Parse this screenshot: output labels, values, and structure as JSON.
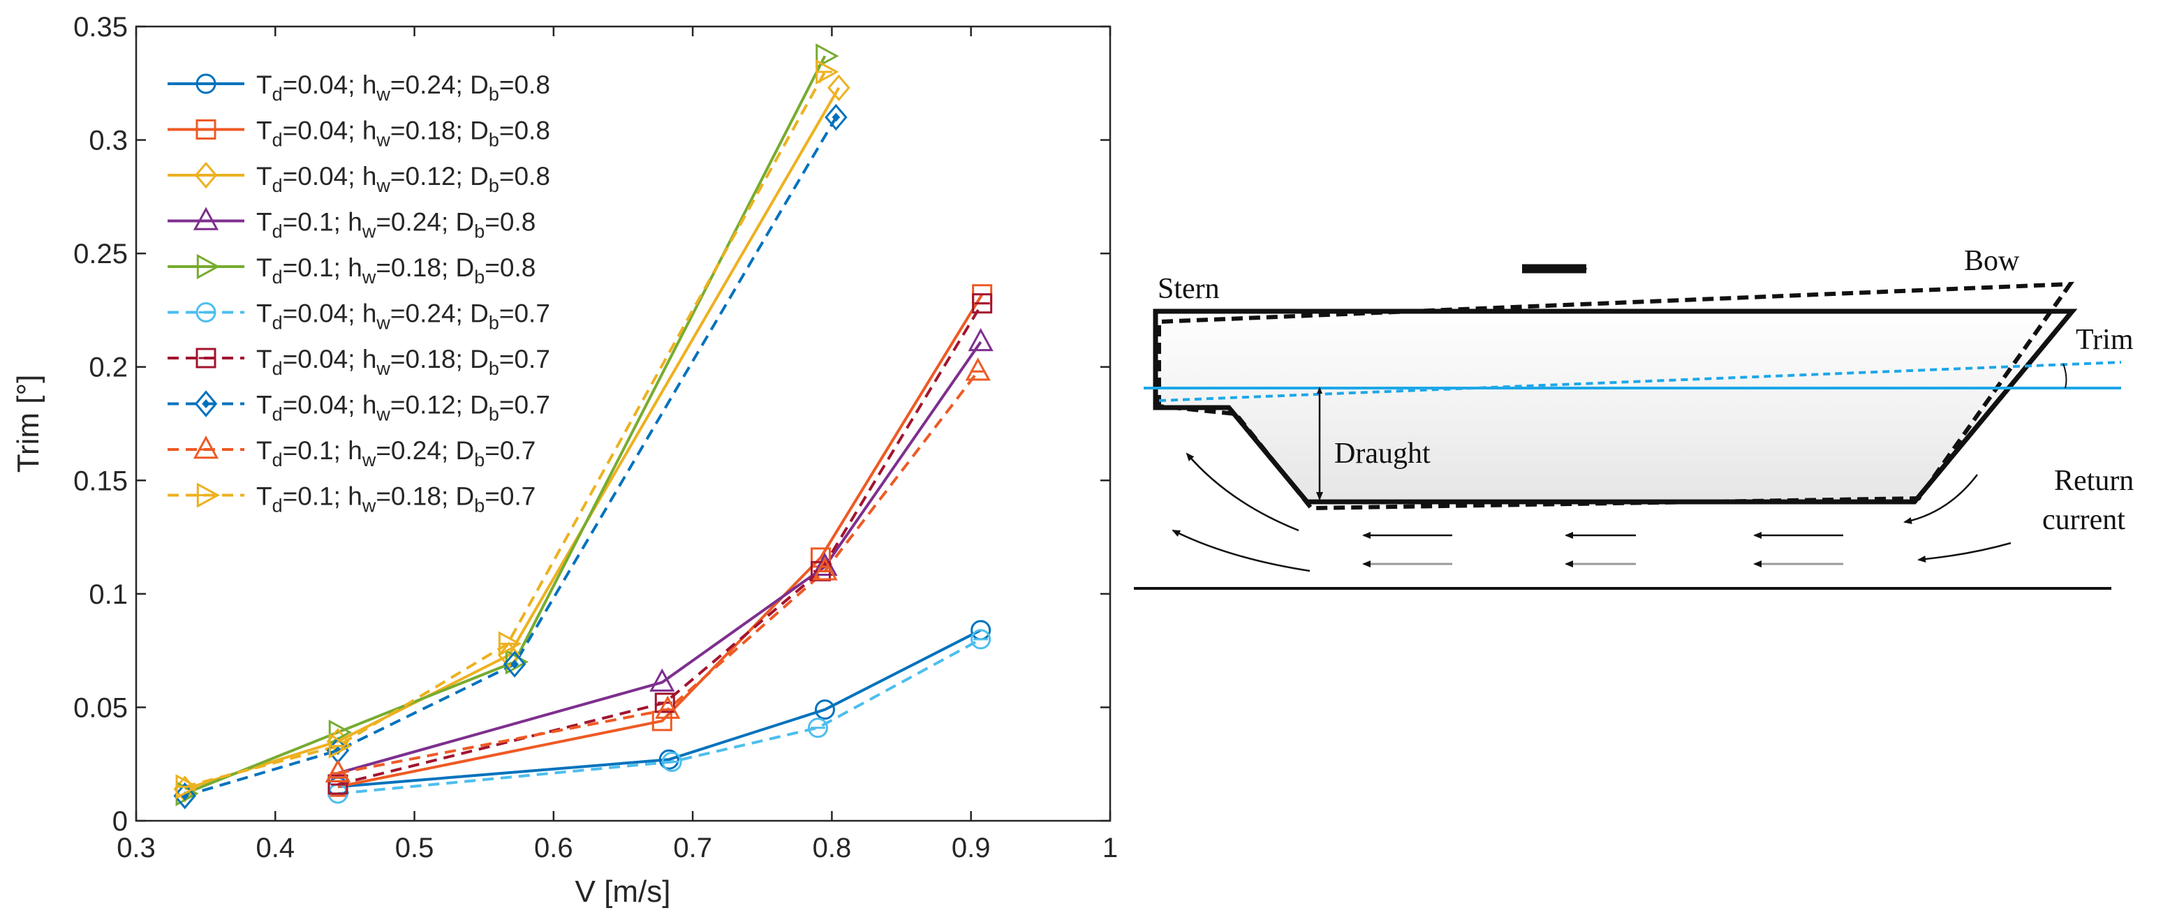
{
  "chart_data": {
    "type": "line",
    "title": "",
    "xlabel": "V [m/s]",
    "ylabel": "Trim [°]",
    "xlim": [
      0.3,
      1.0
    ],
    "ylim": [
      0,
      0.35
    ],
    "xticks": [
      0.3,
      0.4,
      0.5,
      0.6,
      0.7,
      0.8,
      0.9,
      1
    ],
    "xtick_labels": [
      "0.3",
      "0.4",
      "0.5",
      "0.6",
      "0.7",
      "0.8",
      "0.9",
      "1"
    ],
    "yticks": [
      0,
      0.05,
      0.1,
      0.15,
      0.2,
      0.25,
      0.3,
      0.35
    ],
    "ytick_labels": [
      "0",
      "0.05",
      "0.1",
      "0.15",
      "0.2",
      "0.25",
      "0.3",
      "0.35"
    ],
    "legend_position": "top-left",
    "series": [
      {
        "label": {
          "t": "0.04",
          "h": "0.24",
          "d": "0.8"
        },
        "color": "#0072BD",
        "dash": "solid",
        "marker": "circle",
        "x": [
          0.445,
          0.683,
          0.795,
          0.907
        ],
        "y": [
          0.015,
          0.027,
          0.049,
          0.084
        ]
      },
      {
        "label": {
          "t": "0.04",
          "h": "0.18",
          "d": "0.8"
        },
        "color": "#EE5A24",
        "dash": "solid",
        "marker": "square",
        "x": [
          0.445,
          0.678,
          0.792,
          0.908
        ],
        "y": [
          0.015,
          0.044,
          0.116,
          0.232
        ]
      },
      {
        "label": {
          "t": "0.04",
          "h": "0.12",
          "d": "0.8"
        },
        "color": "#EDB120",
        "dash": "solid",
        "marker": "diamond",
        "x": [
          0.335,
          0.445,
          0.568,
          0.805
        ],
        "y": [
          0.014,
          0.035,
          0.073,
          0.323
        ]
      },
      {
        "label": {
          "t": "0.1",
          "h": "0.24",
          "d": "0.8"
        },
        "color": "#7E2F8E",
        "dash": "solid",
        "marker": "triangle-up",
        "x": [
          0.445,
          0.678,
          0.795,
          0.907
        ],
        "y": [
          0.021,
          0.061,
          0.112,
          0.211
        ]
      },
      {
        "label": {
          "t": "0.1",
          "h": "0.18",
          "d": "0.8"
        },
        "color": "#77AC30",
        "dash": "solid",
        "marker": "triangle-right",
        "x": [
          0.335,
          0.445,
          0.572,
          0.795
        ],
        "y": [
          0.012,
          0.039,
          0.07,
          0.337
        ]
      },
      {
        "label": {
          "t": "0.04",
          "h": "0.24",
          "d": "0.7"
        },
        "color": "#4DBEEE",
        "dash": "dashed",
        "marker": "circle-bar",
        "x": [
          0.445,
          0.685,
          0.79,
          0.907
        ],
        "y": [
          0.012,
          0.026,
          0.041,
          0.08
        ]
      },
      {
        "label": {
          "t": "0.04",
          "h": "0.18",
          "d": "0.7"
        },
        "color": "#A2142F",
        "dash": "dashed",
        "marker": "square-bar",
        "x": [
          0.445,
          0.68,
          0.792,
          0.908
        ],
        "y": [
          0.016,
          0.052,
          0.11,
          0.228
        ]
      },
      {
        "label": {
          "t": "0.04",
          "h": "0.12",
          "d": "0.7"
        },
        "color": "#0072BD",
        "dash": "dashed",
        "marker": "diamond-filled",
        "x": [
          0.335,
          0.445,
          0.572,
          0.803
        ],
        "y": [
          0.011,
          0.031,
          0.069,
          0.31
        ]
      },
      {
        "label": {
          "t": "0.1",
          "h": "0.24",
          "d": "0.7"
        },
        "color": "#EE5A24",
        "dash": "dashed",
        "marker": "triangle-up-bar",
        "x": [
          0.445,
          0.682,
          0.795,
          0.905
        ],
        "y": [
          0.021,
          0.049,
          0.11,
          0.198
        ]
      },
      {
        "label": {
          "t": "0.1",
          "h": "0.18",
          "d": "0.7"
        },
        "color": "#EDB120",
        "dash": "dashed",
        "marker": "triangle-right-bar",
        "x": [
          0.335,
          0.445,
          0.567,
          0.795
        ],
        "y": [
          0.015,
          0.033,
          0.078,
          0.33
        ]
      }
    ]
  },
  "legend_text": {
    "t_sym": "T",
    "t_sub": "d",
    "eq": "=",
    "sep": "; ",
    "h_sym": "h",
    "h_sub": "w",
    "d_sym": "D",
    "d_sub": "b"
  },
  "diagram": {
    "stern": "Stern",
    "bow": "Bow",
    "trim": "Trim",
    "draught": "Draught",
    "return_1": "Return",
    "return_2": "current",
    "waterline_color": "#1EA7E8"
  }
}
